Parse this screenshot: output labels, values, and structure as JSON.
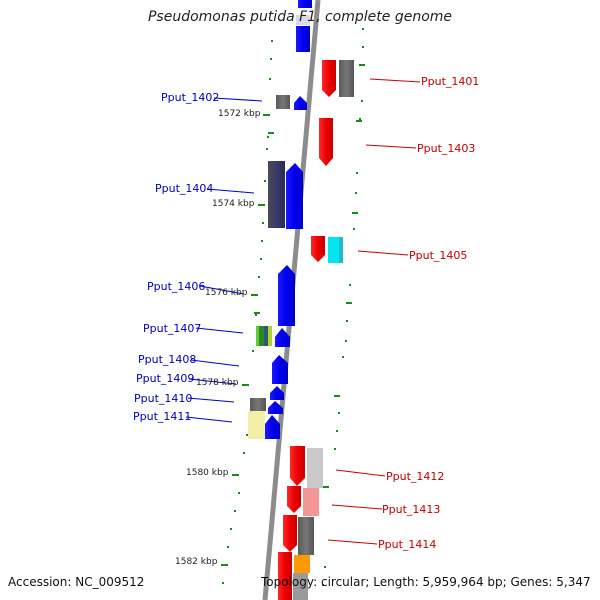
{
  "title": "Pseudomonas putida F1, complete genome",
  "footer": {
    "accession": "Accession: NC_009512",
    "topology": "Topology: circular; Length: 5,959,964 bp; Genes: 5,347"
  },
  "scale_labels": [
    "1572 kbp",
    "1574 kbp",
    "1576 kbp",
    "1578 kbp",
    "1580 kbp",
    "1582 kbp"
  ],
  "genes_forward": [
    "Pput_1401",
    "Pput_1403",
    "Pput_1405",
    "Pput_1412",
    "Pput_1413",
    "Pput_1414"
  ],
  "genes_reverse": [
    "Pput_1402",
    "Pput_1404",
    "Pput_1406",
    "Pput_1407",
    "Pput_1408",
    "Pput_1409",
    "Pput_1410",
    "Pput_1411"
  ],
  "colors": {
    "forward_cds": "#ff0000",
    "reverse_cds": "#0000ff",
    "backbone": "#888888",
    "scale_ticks": "#1a8a1a",
    "label_forward": "#c00000",
    "label_reverse": "#0000b3"
  }
}
